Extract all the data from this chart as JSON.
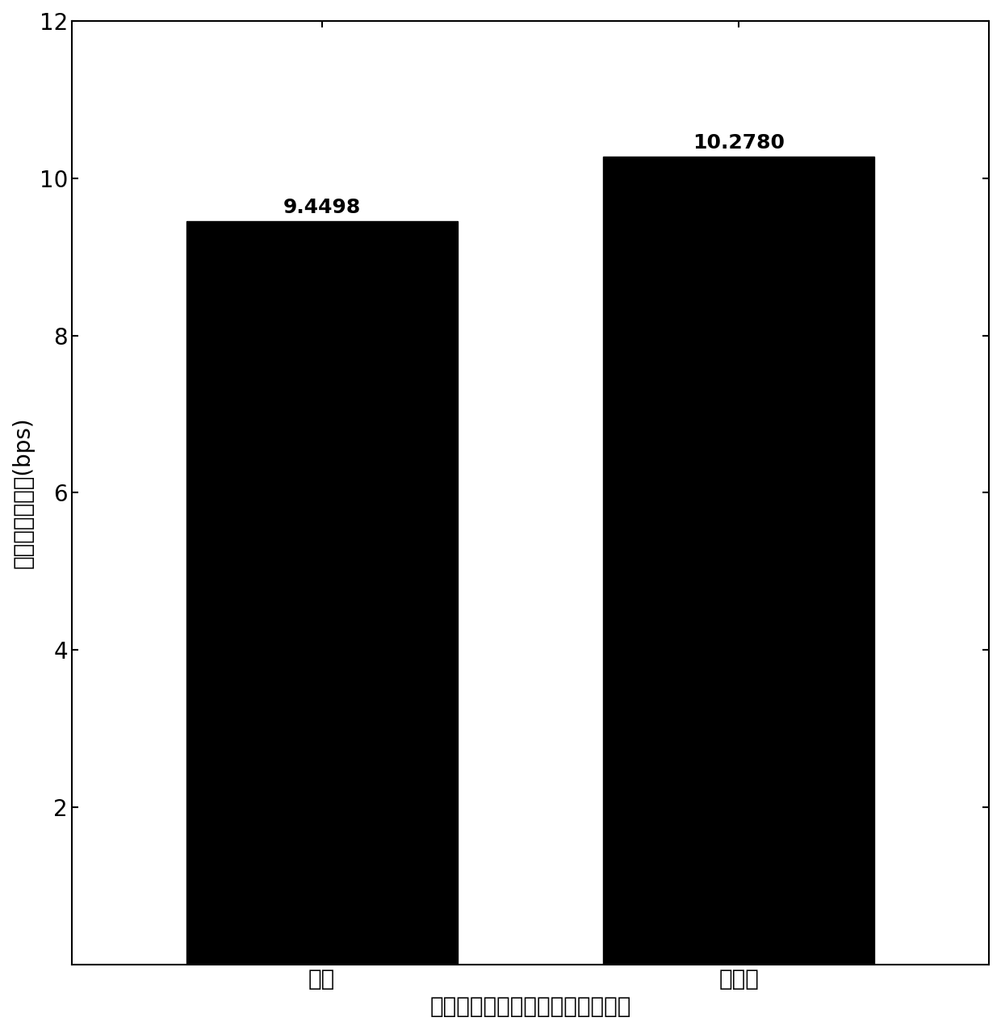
{
  "categories": [
    "接入",
    "未接入"
  ],
  "values": [
    9.4498,
    10.278
  ],
  "bar_color": "#000000",
  "bar_width": 0.65,
  "xlabel": "网络中是否接入低速率大连接用户",
  "ylabel": "用户平均吞吐量(bps)",
  "ylim": [
    0,
    12
  ],
  "yticks": [
    2,
    4,
    6,
    8,
    10,
    12
  ],
  "label_fontsize": 20,
  "tick_fontsize": 20,
  "value_fontsize": 18,
  "bar_positions": [
    1,
    2
  ],
  "xlim": [
    0.4,
    2.6
  ]
}
